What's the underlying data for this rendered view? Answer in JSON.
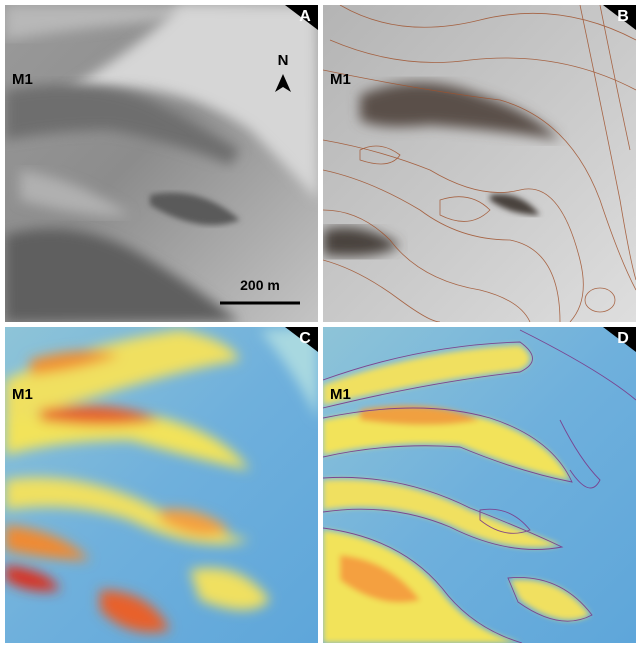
{
  "panels": [
    {
      "label": "A",
      "site": "M1",
      "north": "N",
      "scale_bar": "200 m"
    },
    {
      "label": "B",
      "site": "M1"
    },
    {
      "label": "C",
      "site": "M1"
    },
    {
      "label": "D",
      "site": "M1"
    }
  ]
}
